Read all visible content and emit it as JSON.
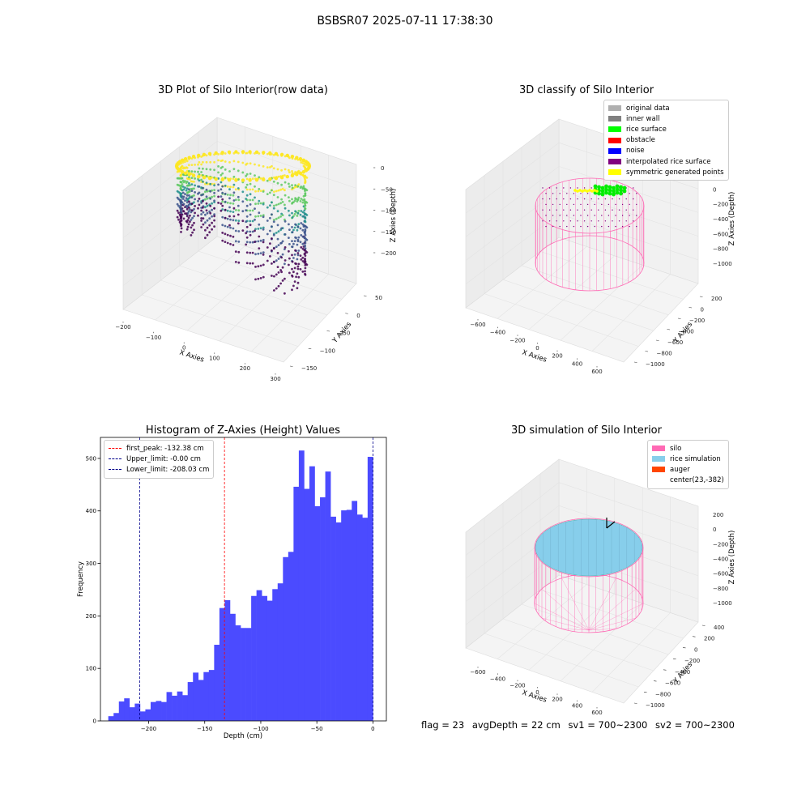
{
  "suptitle": "BSBSR07 2025-07-11 17:38:30",
  "plot_raw": {
    "title": "3D Plot of Silo Interior(row data)",
    "xlabel": "X Axies",
    "ylabel": "Y Axies",
    "zlabel": "Z Axies (Depth)",
    "x_ticks": [
      "−200",
      "−100",
      "0",
      "100",
      "200",
      "300"
    ],
    "y_ticks": [
      "50",
      "0",
      "−50",
      "−100",
      "−150"
    ],
    "z_ticks": [
      "0",
      "−50",
      "−100",
      "−150",
      "−200"
    ],
    "colormap": [
      "#440154",
      "#3b528b",
      "#21918c",
      "#5ec962",
      "#fde725"
    ]
  },
  "plot_classify": {
    "title": "3D classify of Silo Interior",
    "xlabel": "X Axies",
    "ylabel": "Y Axies",
    "zlabel": "Z Axies (Depth)",
    "x_ticks": [
      "−600",
      "−400",
      "−200",
      "0",
      "200",
      "400",
      "600"
    ],
    "y_ticks": [
      "200",
      "0",
      "−200",
      "−400",
      "−600",
      "−800",
      "−1000"
    ],
    "z_ticks": [
      "200",
      "0",
      "−200",
      "−400",
      "−600",
      "−800",
      "−1000"
    ],
    "legend": [
      {
        "label": "original data",
        "color": "#b0b0b0"
      },
      {
        "label": "inner wall",
        "color": "#808080"
      },
      {
        "label": "rice surface",
        "color": "#00ff00"
      },
      {
        "label": "obstacle",
        "color": "#ff0000"
      },
      {
        "label": "noise",
        "color": "#0000ff"
      },
      {
        "label": "interpolated rice surface",
        "color": "#800080"
      },
      {
        "label": "symmetric generated points",
        "color": "#ffff00"
      }
    ],
    "silo_color": "#ff69b4"
  },
  "plot_sim": {
    "title": "3D simulation of Silo Interior",
    "xlabel": "X Axies",
    "ylabel": "Y Axies",
    "zlabel": "Z Axies (Depth)",
    "x_ticks": [
      "−600",
      "−400",
      "−200",
      "0",
      "200",
      "400",
      "600"
    ],
    "y_ticks": [
      "400",
      "200",
      "0",
      "−200",
      "−400",
      "−600",
      "−800",
      "−1000"
    ],
    "z_ticks": [
      "200",
      "0",
      "−200",
      "−400",
      "−600",
      "−800",
      "−1000"
    ],
    "legend": [
      {
        "label": "silo",
        "color": "#ff69b4"
      },
      {
        "label": "rice simulation",
        "color": "#87ceeb"
      },
      {
        "label": "auger",
        "color": "#ff4500"
      },
      {
        "label": "center(23,-382)",
        "color": ""
      }
    ]
  },
  "chart_data": {
    "type": "bar",
    "title": "Histogram of Z-Axies (Height) Values",
    "xlabel": "Depth (cm)",
    "ylabel": "Frequency",
    "xlim": [
      -243,
      12
    ],
    "ylim": [
      0,
      540
    ],
    "x_ticks": [
      -200,
      -150,
      -100,
      -50,
      0
    ],
    "x_tick_labels": [
      "−200",
      "−150",
      "−100",
      "−50",
      "0"
    ],
    "y_ticks": [
      0,
      100,
      200,
      300,
      400,
      500
    ],
    "bar_color": "#4b4bff",
    "bin_start": -236.0,
    "bin_width": 4.72,
    "values": [
      9,
      15,
      37,
      43,
      26,
      33,
      18,
      22,
      36,
      38,
      36,
      55,
      48,
      56,
      49,
      74,
      92,
      78,
      93,
      97,
      145,
      215,
      230,
      204,
      182,
      177,
      177,
      238,
      249,
      238,
      229,
      251,
      262,
      312,
      322,
      446,
      515,
      442,
      485,
      409,
      426,
      475,
      389,
      378,
      401,
      402,
      419,
      393,
      387,
      503
    ],
    "lines": [
      {
        "label": "first_peak: -132.38 cm",
        "x": -132.38,
        "color": "#ff0000"
      },
      {
        "label": "Upper_limit: -0.00 cm",
        "x": -0.0,
        "color": "#00008b"
      },
      {
        "label": "Lower_limit: -208.03 cm",
        "x": -208.03,
        "color": "#00008b"
      }
    ]
  },
  "status": {
    "flag": "flag = 23",
    "avg": "avgDepth = 22 cm",
    "sv1": "sv1 = 700~2300",
    "sv2": "sv2 = 700~2300"
  }
}
